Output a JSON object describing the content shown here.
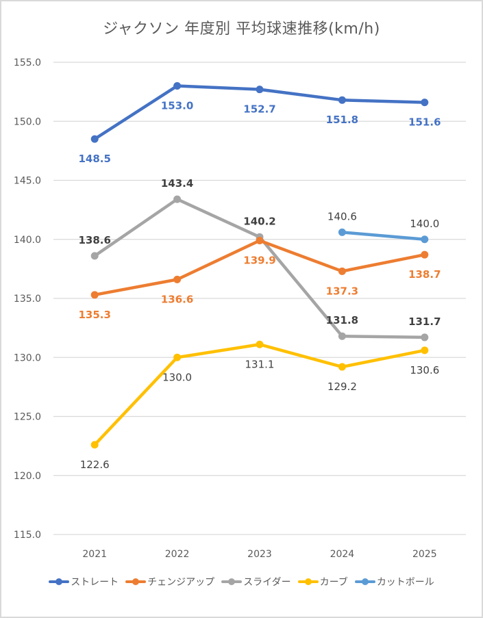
{
  "chart_data": {
    "type": "line",
    "title": "ジャクソン 年度別 平均球速推移(km/h)",
    "xlabel": "",
    "ylabel": "",
    "categories": [
      "2021",
      "2022",
      "2023",
      "2024",
      "2025"
    ],
    "ylim": [
      115,
      155
    ],
    "yticks": [
      "155.0",
      "150.0",
      "145.0",
      "140.0",
      "135.0",
      "130.0",
      "125.0",
      "120.0",
      "115.0"
    ],
    "ytick_values": [
      155,
      150,
      145,
      140,
      135,
      130,
      125,
      120,
      115
    ],
    "grid": true,
    "legend_position": "bottom",
    "series": [
      {
        "name": "ストレート",
        "color": "#4472C4",
        "label_color": "#4472C4",
        "values": [
          148.5,
          153.0,
          152.7,
          151.8,
          151.6
        ],
        "labels": [
          "148.5",
          "153.0",
          "152.7",
          "151.8",
          "151.6"
        ],
        "label_pos": [
          "below",
          "below",
          "below",
          "below",
          "below"
        ]
      },
      {
        "name": "チェンジアップ",
        "color": "#ED7D31",
        "label_color": "#ED7D31",
        "values": [
          135.3,
          136.6,
          139.9,
          137.3,
          138.7
        ],
        "labels": [
          "135.3",
          "136.6",
          "139.9",
          "137.3",
          "138.7"
        ],
        "label_pos": [
          "below",
          "below",
          "below",
          "below",
          "below"
        ]
      },
      {
        "name": "スライダー",
        "color": "#A5A5A5",
        "label_color": "#404040",
        "values": [
          138.6,
          143.4,
          140.2,
          131.8,
          131.7
        ],
        "labels": [
          "138.6",
          "143.4",
          "140.2",
          "131.8",
          "131.7"
        ],
        "label_pos": [
          "above",
          "above",
          "above",
          "above",
          "above"
        ]
      },
      {
        "name": "カーブ",
        "color": "#FFC000",
        "label_color": "#404040",
        "values": [
          122.6,
          130.0,
          131.1,
          129.2,
          130.6
        ],
        "labels": [
          "122.6",
          "130.0",
          "131.1",
          "129.2",
          "130.6"
        ],
        "label_pos": [
          "below",
          "below",
          "below",
          "below",
          "below"
        ]
      },
      {
        "name": "カットボール",
        "color": "#5B9BD5",
        "label_color": "#404040",
        "values": [
          null,
          null,
          null,
          140.6,
          140.0
        ],
        "labels": [
          "",
          "",
          "",
          "140.6",
          "140.0"
        ],
        "label_pos": [
          "above",
          "above",
          "above",
          "above",
          "above"
        ]
      }
    ]
  }
}
